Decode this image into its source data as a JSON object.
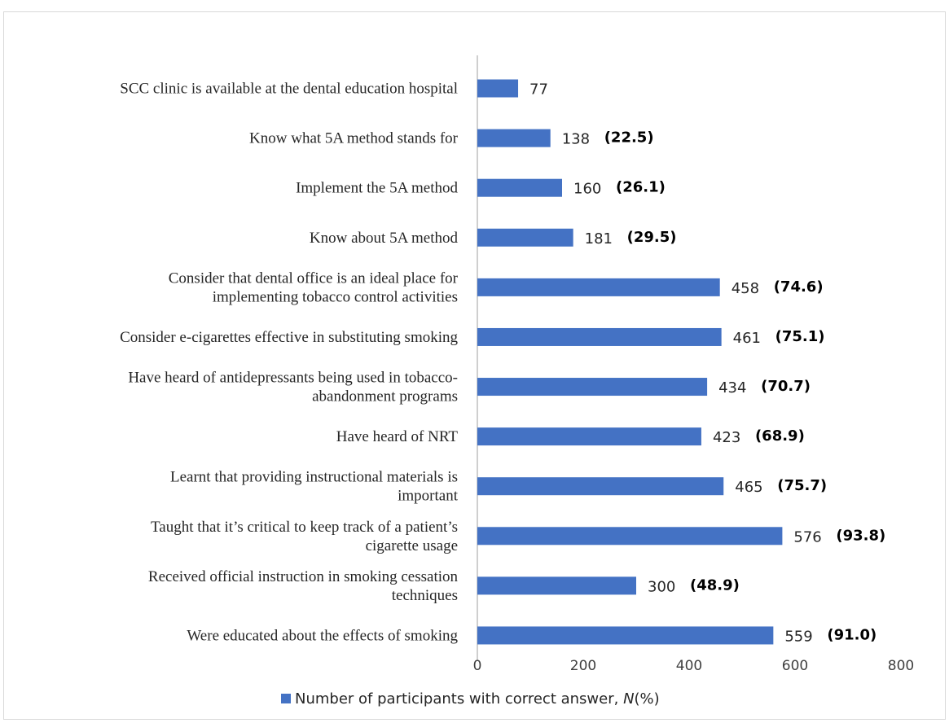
{
  "chart_data": {
    "type": "bar",
    "orientation": "horizontal",
    "categories": [
      "SCC clinic is available at the dental education hospital",
      "Know what 5A method stands for",
      "Implement the 5A method",
      "Know about 5A method",
      "Consider that dental office is an ideal place for implementing tobacco control activities",
      "Consider e-cigarettes effective in substituting smoking",
      "Have heard of antidepressants being used in tobacco-abandonment programs",
      "Have heard of NRT",
      "Learnt that providing instructional materials is important",
      "Taught that it’s critical to keep track of a patient’s cigarette usage",
      "Received official instruction in smoking cessation techniques",
      "Were educated about the effects of smoking"
    ],
    "category_lines": [
      [
        "SCC clinic is available at the dental education hospital"
      ],
      [
        "Know what 5A method stands for"
      ],
      [
        "Implement the 5A method"
      ],
      [
        "Know about 5A method"
      ],
      [
        "Consider that dental office is an ideal place for",
        "implementing tobacco control activities"
      ],
      [
        "Consider e-cigarettes effective in substituting smoking"
      ],
      [
        "Have heard of antidepressants being used in tobacco-",
        "abandonment programs"
      ],
      [
        "Have heard of NRT"
      ],
      [
        "Learnt that providing instructional materials is",
        "important"
      ],
      [
        "Taught that it’s critical to keep track of a patient’s",
        "cigarette usage"
      ],
      [
        "Received official instruction in smoking cessation",
        "techniques"
      ],
      [
        "Were educated about the effects of smoking"
      ]
    ],
    "series": [
      {
        "name": "Number of participants with correct answer, N(%)",
        "values": [
          77,
          138,
          160,
          181,
          458,
          461,
          434,
          423,
          465,
          576,
          300,
          559
        ]
      }
    ],
    "value_labels": [
      "77",
      "138",
      "160",
      "181",
      "458",
      "461",
      "434",
      "423",
      "465",
      "576",
      "300",
      "559"
    ],
    "percent_labels": [
      "",
      "(22.5)",
      "(26.1)",
      "(29.5)",
      "(74.6)",
      "(75.1)",
      "(70.7)",
      "(68.9)",
      "(75.7)",
      "(93.8)",
      "(48.9)",
      "(91.0)"
    ],
    "xlim": [
      0,
      800
    ],
    "xticks": [
      0,
      200,
      400,
      600,
      800
    ],
    "title": "",
    "xlabel": "",
    "ylabel": "",
    "grid": false,
    "legend_position": "bottom",
    "bar_color": "#4472C4"
  },
  "legend": {
    "label_prefix": "Number of participants with correct answer, ",
    "label_italic": "N",
    "label_suffix": "(%)"
  }
}
